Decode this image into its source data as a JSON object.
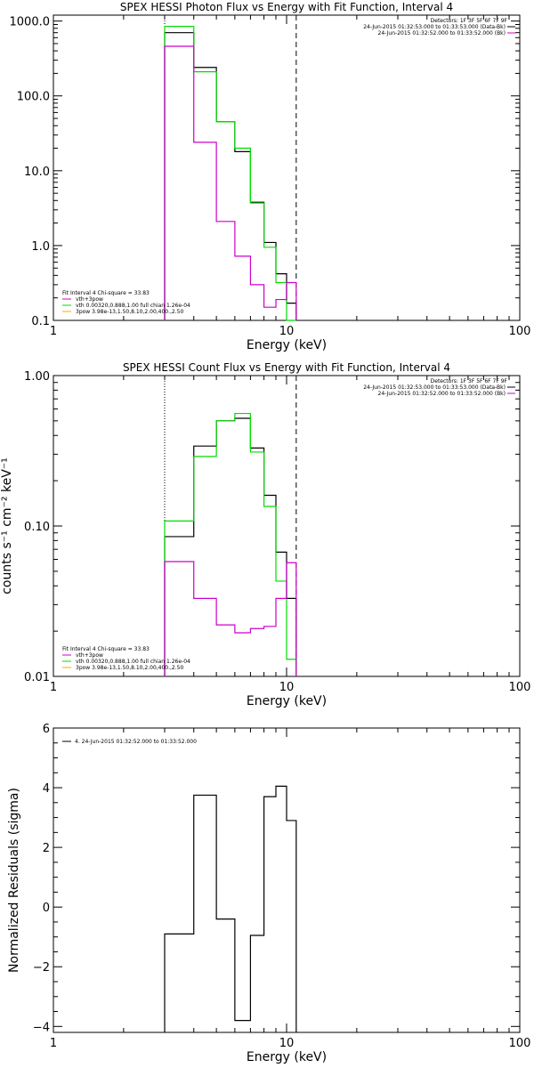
{
  "chart_data": [
    {
      "type": "line",
      "title": "SPEX HESSI Photon Flux vs Energy with Fit Function, Interval 4",
      "xlabel": "Energy (keV)",
      "ylabel": "",
      "xscale": "log",
      "yscale": "log",
      "xlim": [
        1,
        100
      ],
      "ylim": [
        0.1,
        1200
      ],
      "xticks": [
        1,
        10,
        100
      ],
      "xtick_labels": [
        "1",
        "10",
        "100"
      ],
      "yticks": [
        0.1,
        1,
        10,
        100,
        1000
      ],
      "ytick_labels": [
        "0.1",
        "1.0",
        "10.0",
        "100.0",
        "1000.0"
      ],
      "x_edges": [
        3,
        4,
        5,
        6,
        7,
        8,
        9,
        10,
        11
      ],
      "vlines": [
        {
          "x": 3,
          "style": "dotted"
        },
        {
          "x": 11,
          "style": "dashed"
        }
      ],
      "legend_top": {
        "header": "Detectors: 1F 3F 5F 6F 7F 9F",
        "entries": [
          {
            "text": "24-Jun-2015 01:32:53.000 to 01:33:53.000 (Data-Bk)",
            "color": "#000000"
          },
          {
            "text": "24-Jun-2015 01:32:52.000 to 01:33:52.000 (Bk)",
            "color": "#cc00cc"
          }
        ]
      },
      "legend_bottom": {
        "header": "Fit Interval  4   Chi-square = 33.83",
        "entries": [
          {
            "text": "vth+3pow",
            "color": "#cc00cc"
          },
          {
            "text": "vth 0.00320,0.888,1.00  full chian 1.26e-04",
            "color": "#00dd00"
          },
          {
            "text": "3pow 3.98e-13,1.50,8.10,2.00,400.,2.50",
            "color": "#ffa500"
          }
        ]
      },
      "series": [
        {
          "color": "#000000",
          "values": [
            700,
            240,
            45,
            18,
            3.8,
            1.1,
            0.42,
            0.17
          ]
        },
        {
          "color": "#00dd00",
          "values": [
            850,
            210,
            45,
            20,
            3.7,
            0.95,
            0.32,
            0.05
          ]
        },
        {
          "color": "#cc00cc",
          "values": [
            460,
            24,
            2.1,
            0.72,
            0.3,
            0.15,
            0.19,
            0.32
          ]
        }
      ]
    },
    {
      "type": "line",
      "title": "SPEX HESSI Count Flux vs Energy with Fit Function, Interval 4",
      "xlabel": "Energy (keV)",
      "ylabel": "counts s⁻¹ cm⁻² keV⁻¹",
      "xscale": "log",
      "yscale": "log",
      "xlim": [
        1,
        100
      ],
      "ylim": [
        0.01,
        1
      ],
      "xticks": [
        1,
        10,
        100
      ],
      "xtick_labels": [
        "1",
        "10",
        "100"
      ],
      "yticks": [
        0.01,
        0.1,
        1
      ],
      "ytick_labels": [
        "0.01",
        "0.10",
        "1.00"
      ],
      "x_edges": [
        3,
        4,
        5,
        6,
        7,
        8,
        9,
        10,
        11
      ],
      "vlines": [
        {
          "x": 3,
          "style": "dotted"
        },
        {
          "x": 11,
          "style": "dashed"
        }
      ],
      "legend_top": {
        "header": "Detectors: 1F 3F 5F 6F 7F 9F",
        "entries": [
          {
            "text": "24-Jun-2015 01:32:53.000 to 01:33:53.000 (Data-Bk)",
            "color": "#000000"
          },
          {
            "text": "24-Jun-2015 01:32:52.000 to 01:33:52.000 (Bk)",
            "color": "#cc00cc"
          }
        ]
      },
      "legend_bottom": {
        "header": "Fit Interval  4   Chi-square = 33.83",
        "entries": [
          {
            "text": "vth+3pow",
            "color": "#cc00cc"
          },
          {
            "text": "vth 0.00320,0.888,1.00  full chian 1.26e-04",
            "color": "#00dd00"
          },
          {
            "text": "3pow 3.98e-13,1.50,8.10,2.00,400.,2.50",
            "color": "#ffa500"
          }
        ]
      },
      "series": [
        {
          "color": "#000000",
          "values": [
            0.085,
            0.34,
            0.5,
            0.52,
            0.33,
            0.16,
            0.067,
            0.033
          ]
        },
        {
          "color": "#00dd00",
          "values": [
            0.108,
            0.29,
            0.5,
            0.56,
            0.31,
            0.135,
            0.043,
            0.013
          ]
        },
        {
          "color": "#cc00cc",
          "values": [
            0.058,
            0.033,
            0.022,
            0.0195,
            0.0208,
            0.0215,
            0.033,
            0.057
          ]
        }
      ]
    },
    {
      "type": "line",
      "title": "",
      "xlabel": "Energy (keV)",
      "ylabel": "Normalized Residuals (sigma)",
      "xscale": "log",
      "yscale": "linear",
      "xlim": [
        1,
        100
      ],
      "ylim": [
        -4.2,
        6
      ],
      "xticks": [
        1,
        10,
        100
      ],
      "xtick_labels": [
        "1",
        "10",
        "100"
      ],
      "yticks": [
        -4,
        -2,
        0,
        2,
        4,
        6
      ],
      "ytick_labels": [
        "−4",
        "−2",
        "0",
        "2",
        "4",
        "6"
      ],
      "x_edges": [
        3,
        4,
        5,
        6,
        7,
        8,
        9,
        10,
        11
      ],
      "vlines": [],
      "legend_top": {
        "header": "",
        "entries": [
          {
            "text": "4. 24-Jun-2015 01:32:52.000 to 01:33:52.000",
            "color": "#000000"
          }
        ]
      },
      "legend_bottom": {
        "header": "",
        "entries": []
      },
      "series": [
        {
          "color": "#000000",
          "values": [
            -0.9,
            3.75,
            -0.4,
            -3.8,
            -0.95,
            3.7,
            4.05,
            2.9
          ]
        }
      ]
    }
  ]
}
